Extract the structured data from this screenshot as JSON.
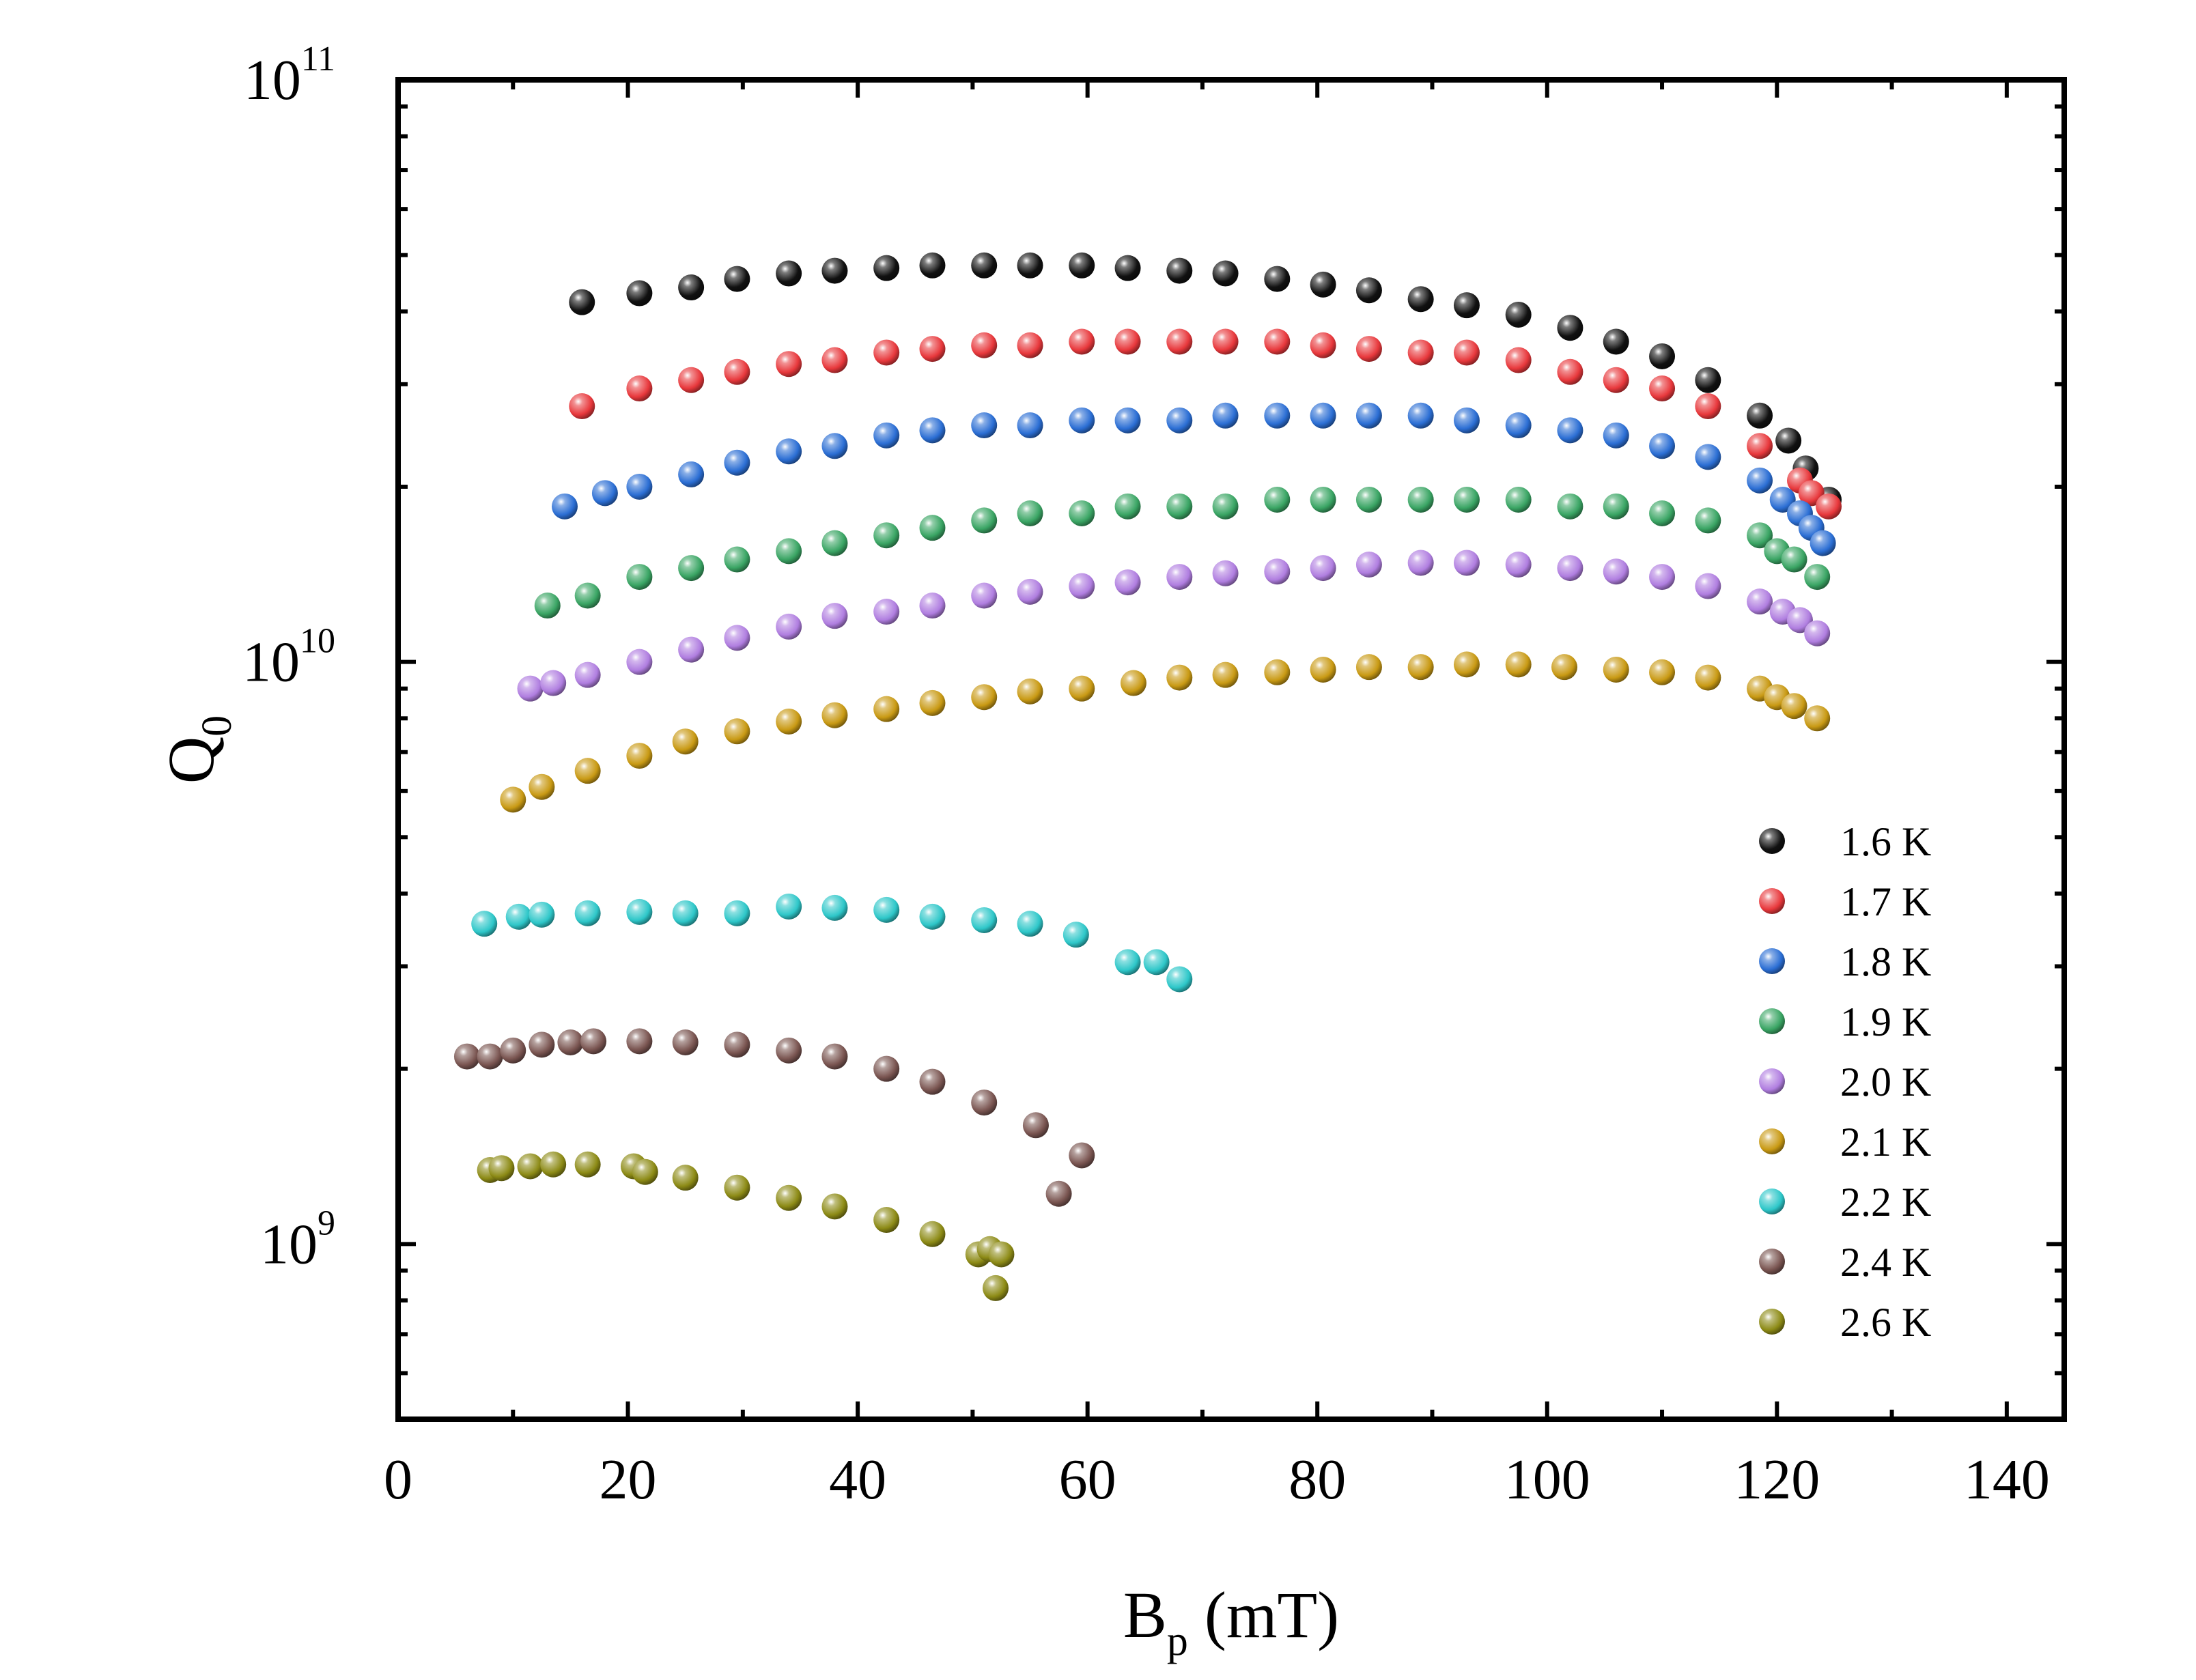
{
  "chart_data": {
    "type": "scatter",
    "xlabel": {
      "main": "B",
      "sub": "p",
      "rest": " (mT)"
    },
    "ylabel": {
      "main": "Q",
      "sub": "0"
    },
    "xlim": [
      0,
      145
    ],
    "ylim": [
      500000000,
      100000000000
    ],
    "yscale": "log",
    "x_ticks": [
      0,
      20,
      40,
      60,
      80,
      100,
      120,
      140
    ],
    "y_ticks": [
      {
        "value": 1000000000,
        "base": "10",
        "exp": "9"
      },
      {
        "value": 10000000000,
        "base": "10",
        "exp": "10"
      },
      {
        "value": 100000000000,
        "base": "10",
        "exp": "11"
      }
    ],
    "grid": false,
    "legend_position": "right",
    "series": [
      {
        "name": "1.6 K",
        "color": "#111111",
        "x": [
          16,
          21,
          25.5,
          29.5,
          34,
          38,
          42.5,
          46.5,
          51,
          55,
          59.5,
          63.5,
          68,
          72,
          76.5,
          80.5,
          84.5,
          89,
          93,
          97.5,
          102,
          106,
          110,
          114,
          118.5,
          121,
          122.5,
          124.5
        ],
        "y": [
          41500000000,
          43000000000,
          44000000000,
          45500000000,
          46500000000,
          47000000000,
          47500000000,
          48000000000,
          48000000000,
          48000000000,
          48000000000,
          47500000000,
          47000000000,
          46500000000,
          45500000000,
          44500000000,
          43500000000,
          42000000000,
          41000000000,
          39500000000,
          37500000000,
          35500000000,
          33500000000,
          30500000000,
          26500000000,
          24000000000,
          21500000000,
          19000000000
        ]
      },
      {
        "name": "1.7 K",
        "color": "#e8383c",
        "x": [
          16,
          21,
          25.5,
          29.5,
          34,
          38,
          42.5,
          46.5,
          51,
          55,
          59.5,
          63.5,
          68,
          72,
          76.5,
          80.5,
          84.5,
          89,
          93,
          97.5,
          102,
          106,
          110,
          114,
          118.5,
          122,
          123,
          124.5
        ],
        "y": [
          27500000000,
          29500000000,
          30500000000,
          31500000000,
          32500000000,
          33000000000,
          34000000000,
          34500000000,
          35000000000,
          35000000000,
          35500000000,
          35500000000,
          35500000000,
          35500000000,
          35500000000,
          35000000000,
          34500000000,
          34000000000,
          34000000000,
          33000000000,
          31500000000,
          30500000000,
          29500000000,
          27500000000,
          23500000000,
          20500000000,
          19500000000,
          18500000000
        ]
      },
      {
        "name": "1.8 K",
        "color": "#2b6ed4",
        "x": [
          14.5,
          18,
          21,
          25.5,
          29.5,
          34,
          38,
          42.5,
          46.5,
          51,
          55,
          59.5,
          63.5,
          68,
          72,
          76.5,
          80.5,
          84.5,
          89,
          93,
          97.5,
          102,
          106,
          110,
          114,
          118.5,
          120.5,
          122,
          123,
          124
        ],
        "y": [
          18500000000,
          19500000000,
          20000000000,
          21000000000,
          22000000000,
          23000000000,
          23500000000,
          24500000000,
          25000000000,
          25500000000,
          25500000000,
          26000000000,
          26000000000,
          26000000000,
          26500000000,
          26500000000,
          26500000000,
          26500000000,
          26500000000,
          26000000000,
          25500000000,
          25000000000,
          24500000000,
          23500000000,
          22500000000,
          20500000000,
          19000000000,
          18000000000,
          17000000000,
          16000000000
        ]
      },
      {
        "name": "1.9 K",
        "color": "#3aa564",
        "x": [
          13,
          16.5,
          21,
          25.5,
          29.5,
          34,
          38,
          42.5,
          46.5,
          51,
          55,
          59.5,
          63.5,
          68,
          72,
          76.5,
          80.5,
          84.5,
          89,
          93,
          97.5,
          102,
          106,
          110,
          114,
          118.5,
          120,
          121.5,
          123.5
        ],
        "y": [
          12500000000,
          13000000000,
          14000000000,
          14500000000,
          15000000000,
          15500000000,
          16000000000,
          16500000000,
          17000000000,
          17500000000,
          18000000000,
          18000000000,
          18500000000,
          18500000000,
          18500000000,
          19000000000,
          19000000000,
          19000000000,
          19000000000,
          19000000000,
          19000000000,
          18500000000,
          18500000000,
          18000000000,
          17500000000,
          16500000000,
          15500000000,
          15000000000,
          14000000000
        ]
      },
      {
        "name": "2.0 K",
        "color": "#b07ee0",
        "x": [
          11.5,
          13.5,
          16.5,
          21,
          25.5,
          29.5,
          34,
          38,
          42.5,
          46.5,
          51,
          55,
          59.5,
          63.5,
          68,
          72,
          76.5,
          80.5,
          84.5,
          89,
          93,
          97.5,
          102,
          106,
          110,
          114,
          118.5,
          120.5,
          122,
          123.5
        ],
        "y": [
          9000000000,
          9200000000,
          9500000000,
          10000000000,
          10500000000,
          11000000000,
          11500000000,
          12000000000,
          12200000000,
          12500000000,
          13000000000,
          13200000000,
          13500000000,
          13700000000,
          14000000000,
          14200000000,
          14300000000,
          14500000000,
          14700000000,
          14800000000,
          14800000000,
          14700000000,
          14500000000,
          14300000000,
          14000000000,
          13500000000,
          12700000000,
          12200000000,
          11800000000,
          11200000000
        ]
      },
      {
        "name": "2.1 K",
        "color": "#c99a14",
        "x": [
          10,
          12.5,
          16.5,
          21,
          25,
          29.5,
          34,
          38,
          42.5,
          46.5,
          51,
          55,
          59.5,
          64,
          68,
          72,
          76.5,
          80.5,
          84.5,
          89,
          93,
          97.5,
          101.5,
          106,
          110,
          114,
          118.5,
          120,
          121.5,
          123.5
        ],
        "y": [
          5800000000,
          6100000000,
          6500000000,
          6900000000,
          7300000000,
          7600000000,
          7900000000,
          8100000000,
          8300000000,
          8500000000,
          8700000000,
          8900000000,
          9000000000,
          9200000000,
          9400000000,
          9500000000,
          9600000000,
          9700000000,
          9800000000,
          9800000000,
          9900000000,
          9900000000,
          9800000000,
          9700000000,
          9600000000,
          9400000000,
          9000000000,
          8700000000,
          8400000000,
          8000000000
        ]
      },
      {
        "name": "2.2 K",
        "color": "#2ec7c9",
        "x": [
          7.5,
          10.5,
          12.5,
          16.5,
          21,
          25,
          29.5,
          34,
          38,
          42.5,
          46.5,
          51,
          55,
          59,
          63.5,
          66,
          68
        ],
        "y": [
          3550000000,
          3650000000,
          3680000000,
          3700000000,
          3720000000,
          3700000000,
          3700000000,
          3800000000,
          3780000000,
          3750000000,
          3650000000,
          3600000000,
          3550000000,
          3400000000,
          3050000000,
          3050000000,
          2850000000
        ]
      },
      {
        "name": "2.4 K",
        "color": "#7a5551",
        "x": [
          6,
          8,
          10,
          12.5,
          15,
          17,
          21,
          25,
          29.5,
          34,
          38,
          42.5,
          46.5,
          51,
          55.5,
          59.5,
          57.5
        ],
        "y": [
          2100000000,
          2100000000,
          2150000000,
          2200000000,
          2220000000,
          2230000000,
          2230000000,
          2220000000,
          2200000000,
          2150000000,
          2100000000,
          2000000000,
          1900000000,
          1750000000,
          1600000000,
          1420000000,
          1220000000
        ]
      },
      {
        "name": "2.6 K",
        "color": "#8d8b16",
        "x": [
          8,
          9,
          11.5,
          13.5,
          16.5,
          20.5,
          21.5,
          25,
          29.5,
          34,
          38,
          42.5,
          46.5,
          50.5,
          51.5,
          52.5,
          52
        ],
        "y": [
          1340000000,
          1350000000,
          1360000000,
          1370000000,
          1370000000,
          1360000000,
          1330000000,
          1300000000,
          1250000000,
          1200000000,
          1160000000,
          1100000000,
          1040000000,
          960000000,
          980000000,
          960000000,
          840000000
        ]
      }
    ]
  }
}
